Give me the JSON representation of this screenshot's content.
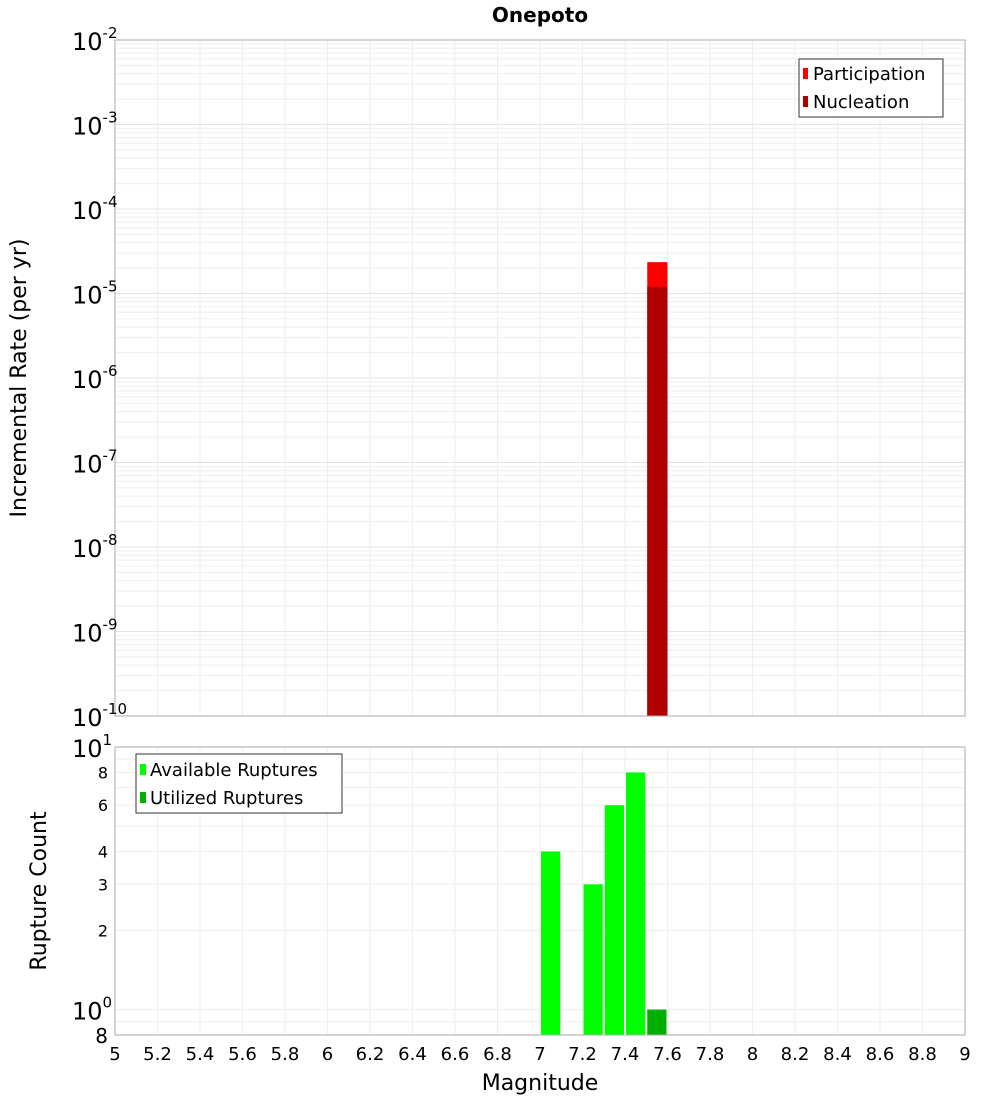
{
  "chart_data": [
    {
      "type": "bar",
      "title": "Onepoto",
      "xlabel": "Magnitude",
      "ylabel": "Incremental Rate (per yr)",
      "yscale": "log",
      "ylim": [
        1e-10,
        0.01
      ],
      "xlim": [
        5,
        9
      ],
      "bin_width": 0.1,
      "grid": true,
      "legend_position": "top-right",
      "y_tick_exponents": [
        -10,
        -9,
        -8,
        -7,
        -6,
        -5,
        -4,
        -3,
        -2
      ],
      "series": [
        {
          "name": "Participation",
          "color": "#ff0000",
          "bins": [
            {
              "x": 7.5,
              "y": 2.35e-05
            }
          ]
        },
        {
          "name": "Nucleation",
          "color": "#b00000",
          "bins": [
            {
              "x": 7.5,
              "y": 1.2e-05
            }
          ]
        }
      ]
    },
    {
      "type": "bar",
      "xlabel": "Magnitude",
      "ylabel": "Rupture Count",
      "yscale": "log",
      "ylim": [
        0.8,
        10
      ],
      "xlim": [
        5,
        9
      ],
      "bin_width": 0.1,
      "grid": true,
      "legend_position": "top-left",
      "x_ticks": [
        "5",
        "5.2",
        "5.4",
        "5.6",
        "5.8",
        "6",
        "6.2",
        "6.4",
        "6.6",
        "6.8",
        "7",
        "7.2",
        "7.4",
        "7.6",
        "7.8",
        "8",
        "8.2",
        "8.4",
        "8.6",
        "8.8",
        "9"
      ],
      "y_minor_labels": [
        "8",
        "6",
        "4",
        "3",
        "2",
        "8"
      ],
      "y_major_labels": [
        {
          "base": "10",
          "exp": "1"
        },
        {
          "base": "10",
          "exp": "0"
        }
      ],
      "series": [
        {
          "name": "Available Ruptures",
          "color": "#00ff00",
          "bins": [
            {
              "x": 7.0,
              "y": 4
            },
            {
              "x": 7.2,
              "y": 3
            },
            {
              "x": 7.3,
              "y": 6
            },
            {
              "x": 7.4,
              "y": 8
            }
          ]
        },
        {
          "name": "Utilized Ruptures",
          "color": "#00b000",
          "bins": [
            {
              "x": 7.5,
              "y": 1
            }
          ]
        }
      ]
    }
  ]
}
